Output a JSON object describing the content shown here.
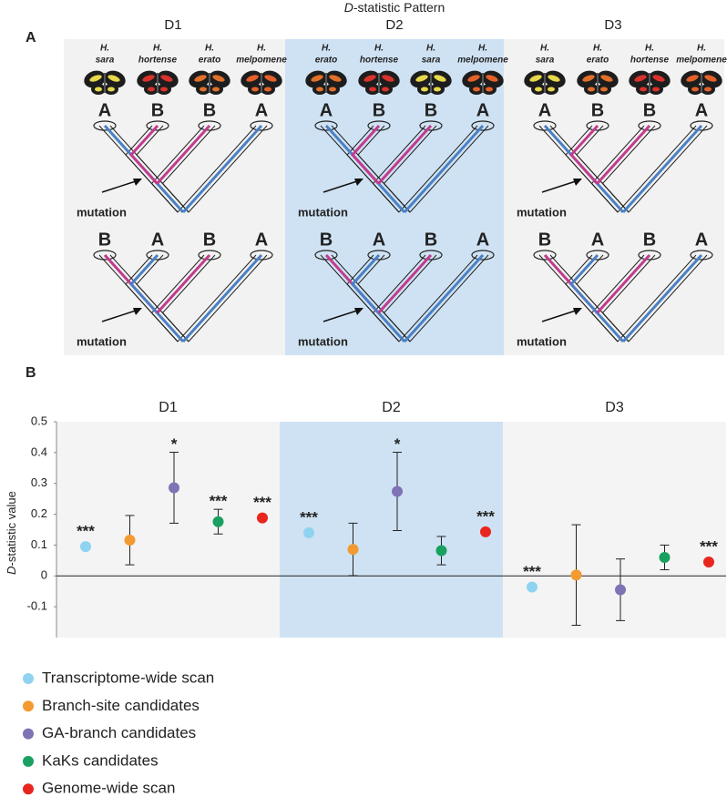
{
  "panel_a": {
    "label": "A",
    "title": [
      "D",
      "-statistic Pattern"
    ],
    "letter_colors": {
      "A": "#4a80c4",
      "B": "#c23b8e"
    },
    "columns": [
      {
        "name": "D1",
        "species": [
          {
            "genus": "H.",
            "species": "sara",
            "color": "#e7d84c"
          },
          {
            "genus": "H.",
            "species": "hortense",
            "color": "#d8322c"
          },
          {
            "genus": "H.",
            "species": "erato",
            "color": "#e0702a"
          },
          {
            "genus": "H.",
            "species": "melpomene",
            "color": "#e4612a"
          }
        ],
        "top": [
          "A",
          "B",
          "B",
          "A"
        ],
        "bottom": [
          "B",
          "A",
          "B",
          "A"
        ],
        "mutation": [
          "mutation",
          "mutation"
        ]
      },
      {
        "name": "D2",
        "species": [
          {
            "genus": "H.",
            "species": "erato",
            "color": "#e0702a"
          },
          {
            "genus": "H.",
            "species": "hortense",
            "color": "#d8322c"
          },
          {
            "genus": "H.",
            "species": "sara",
            "color": "#e7d84c"
          },
          {
            "genus": "H.",
            "species": "melpomene",
            "color": "#e4612a"
          }
        ],
        "top": [
          "A",
          "B",
          "B",
          "A"
        ],
        "bottom": [
          "B",
          "A",
          "B",
          "A"
        ],
        "mutation": [
          "mutation",
          "mutation"
        ]
      },
      {
        "name": "D3",
        "species": [
          {
            "genus": "H.",
            "species": "sara",
            "color": "#e7d84c"
          },
          {
            "genus": "H.",
            "species": "erato",
            "color": "#e0702a"
          },
          {
            "genus": "H.",
            "species": "hortense",
            "color": "#d8322c"
          },
          {
            "genus": "H.",
            "species": "melpomene",
            "color": "#e4612a"
          }
        ],
        "top": [
          "A",
          "B",
          "B",
          "A"
        ],
        "bottom": [
          "B",
          "A",
          "B",
          "A"
        ],
        "mutation": [
          "mutation",
          "mutation"
        ]
      }
    ]
  },
  "panel_b_label": "B",
  "chart_data": {
    "type": "dot",
    "y_label": [
      "D",
      "-statistic value"
    ],
    "categories": [
      "D1",
      "D2",
      "D3"
    ],
    "highlight_category": 1,
    "ylim": [
      -0.2,
      0.5
    ],
    "yticks": [
      0.5,
      0.4,
      0.3,
      0.2,
      0.1,
      0,
      -0.1
    ],
    "series": [
      {
        "name": "Transcriptome-wide scan",
        "color": "#8fd3f0",
        "values": [
          0.095,
          0.14,
          -0.036
        ],
        "errors": [
          null,
          null,
          null
        ],
        "significance": [
          "***",
          "***",
          "***"
        ]
      },
      {
        "name": "Branch-site candidates",
        "color": "#f39a32",
        "values": [
          0.116,
          0.086,
          0.003
        ],
        "errors": [
          0.08,
          0.085,
          0.163
        ],
        "significance": [
          null,
          null,
          null
        ]
      },
      {
        "name": "GA-branch candidates",
        "color": "#7f73b5",
        "values": [
          0.286,
          0.274,
          -0.045
        ],
        "errors": [
          0.115,
          0.127,
          0.1
        ],
        "significance": [
          "*",
          "*",
          null
        ]
      },
      {
        "name": "KaKs candidates",
        "color": "#1aa060",
        "values": [
          0.176,
          0.082,
          0.06
        ],
        "errors": [
          0.04,
          0.046,
          0.04
        ],
        "significance": [
          "***",
          null,
          null
        ]
      },
      {
        "name": "Genome-wide scan",
        "color": "#e8261e",
        "values": [
          0.188,
          0.143,
          0.045
        ],
        "errors": [
          null,
          null,
          null
        ],
        "significance": [
          "***",
          "***",
          "***"
        ]
      }
    ]
  }
}
